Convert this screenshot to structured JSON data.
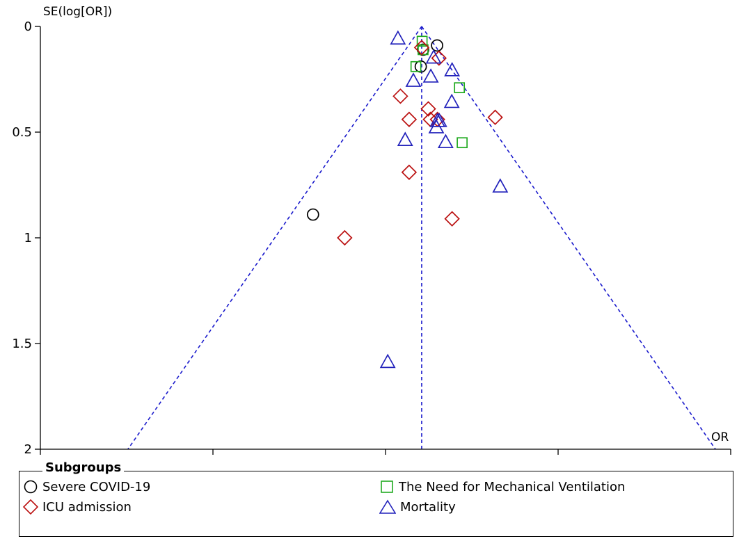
{
  "chart_data": {
    "type": "scatter",
    "title": "",
    "xlabel": "OR",
    "ylabel": "SE(log[OR])",
    "x_scale": "log",
    "xlim": [
      0.01,
      100
    ],
    "ylim": [
      2,
      0
    ],
    "y_inverted": true,
    "x_ticks": [
      "0.01",
      "0.1",
      "1",
      "10",
      "100"
    ],
    "y_ticks": [
      "0",
      "0.5",
      "1",
      "1.5",
      "2"
    ],
    "pooled_or": 1.62,
    "funnel_color": "#1a1acc",
    "legend_title": "Subgroups",
    "legend_position": "bottom",
    "series": [
      {
        "name": "Severe COVID-19",
        "marker": "circle",
        "color": "#000000",
        "points": [
          [
            1.99,
            0.09
          ],
          [
            1.6,
            0.19
          ],
          [
            1.65,
            0.11
          ],
          [
            0.38,
            0.89
          ]
        ]
      },
      {
        "name": "The Need for Mechanical Ventilation",
        "marker": "square",
        "color": "#22aa22",
        "points": [
          [
            1.63,
            0.07
          ],
          [
            1.65,
            0.11
          ],
          [
            1.5,
            0.19
          ],
          [
            2.68,
            0.29
          ],
          [
            2.78,
            0.55
          ]
        ]
      },
      {
        "name": "ICU admission",
        "marker": "diamond",
        "color": "#bb1111",
        "points": [
          [
            1.62,
            0.1
          ],
          [
            2.04,
            0.15
          ],
          [
            1.22,
            0.33
          ],
          [
            1.77,
            0.39
          ],
          [
            1.37,
            0.44
          ],
          [
            1.82,
            0.44
          ],
          [
            2.0,
            0.44
          ],
          [
            4.32,
            0.43
          ],
          [
            1.37,
            0.69
          ],
          [
            2.43,
            0.91
          ],
          [
            0.58,
            1.0
          ]
        ]
      },
      {
        "name": "Mortality",
        "marker": "triangle",
        "color": "#2222bb",
        "points": [
          [
            1.18,
            0.06
          ],
          [
            1.9,
            0.15
          ],
          [
            2.43,
            0.21
          ],
          [
            1.83,
            0.24
          ],
          [
            1.45,
            0.26
          ],
          [
            2.42,
            0.36
          ],
          [
            2.0,
            0.45
          ],
          [
            2.05,
            0.45
          ],
          [
            1.97,
            0.48
          ],
          [
            1.3,
            0.54
          ],
          [
            2.23,
            0.55
          ],
          [
            4.62,
            0.76
          ],
          [
            1.03,
            1.59
          ]
        ]
      }
    ]
  }
}
